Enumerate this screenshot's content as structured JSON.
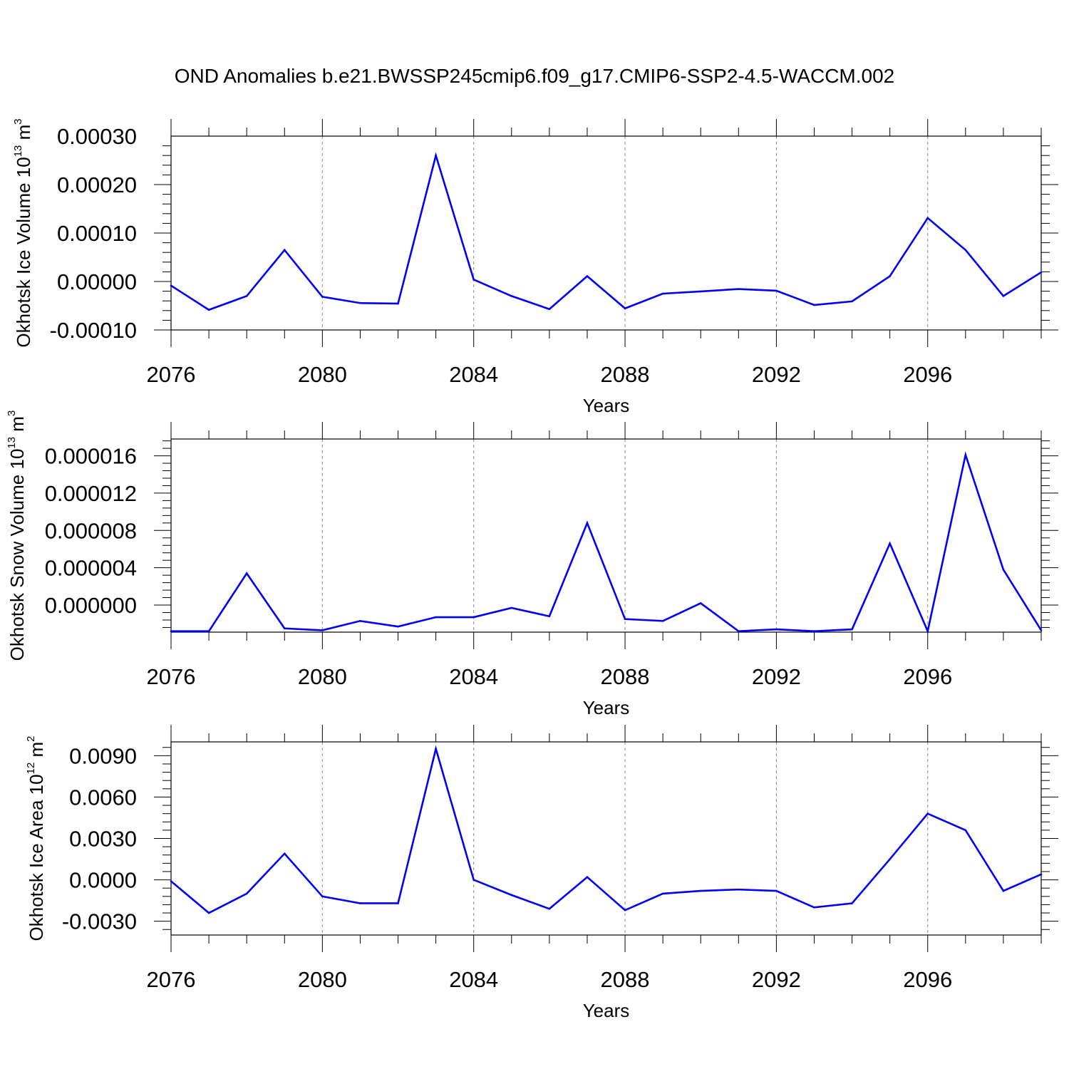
{
  "figure": {
    "title": "OND Anomalies b.e21.BWSSP245cmip6.f09_g17.CMIP6-SSP2-4.5-WACCM.002"
  },
  "colors": {
    "line": "#0000ff",
    "axis": "#000000",
    "gridline": "#888888",
    "background": "#ffffff"
  },
  "chart_data": [
    {
      "type": "line",
      "panel": "top",
      "xlabel": "Years",
      "ylabel": {
        "text": "Okhotsk Ice Volume 10",
        "exponent": "13",
        "unit": " m",
        "unit_exponent": "3"
      },
      "xlim": [
        2076,
        2099
      ],
      "ylim": [
        -0.0001,
        0.0003
      ],
      "x_ticks": [
        2076,
        2080,
        2084,
        2088,
        2092,
        2096
      ],
      "x_tick_labels": [
        "2076",
        "2080",
        "2084",
        "2088",
        "2092",
        "2096"
      ],
      "y_ticks": [
        -0.0001,
        0.0,
        0.0001,
        0.0002,
        0.0003
      ],
      "y_tick_labels": [
        "-0.00010",
        "0.00000",
        "0.00010",
        "0.00020",
        "0.00030"
      ],
      "vertical_gridlines": [
        2080,
        2084,
        2088,
        2092,
        2096
      ],
      "series": [
        {
          "x": [
            2076,
            2077,
            2078,
            2079,
            2080,
            2081,
            2082,
            2083,
            2084,
            2085,
            2086,
            2087,
            2088,
            2089,
            2090,
            2091,
            2092,
            2093,
            2094,
            2095,
            2096,
            2097,
            2098,
            2099
          ],
          "values": [
            -8.5e-06,
            -5.85e-05,
            -3e-05,
            6.5e-05,
            -3.15e-05,
            -4.45e-05,
            -4.55e-05,
            0.00026,
            4e-06,
            -3e-05,
            -5.7e-05,
            1.1e-05,
            -5.55e-05,
            -2.5e-05,
            -2.05e-05,
            -1.55e-05,
            -1.9e-05,
            -4.85e-05,
            -4.1e-05,
            1.1e-05,
            0.000131,
            6.5e-05,
            -3e-05,
            1.9e-05
          ]
        }
      ]
    },
    {
      "type": "line",
      "panel": "middle",
      "xlabel": "Years",
      "ylabel": {
        "text": "Okhotsk Snow Volume 10",
        "exponent": "13",
        "unit": " m",
        "unit_exponent": "3"
      },
      "xlim": [
        2076,
        2099
      ],
      "ylim": [
        -2.9e-06,
        1.78e-05
      ],
      "x_ticks": [
        2076,
        2080,
        2084,
        2088,
        2092,
        2096
      ],
      "x_tick_labels": [
        "2076",
        "2080",
        "2084",
        "2088",
        "2092",
        "2096"
      ],
      "y_ticks": [
        0.0,
        4e-06,
        8e-06,
        1.2e-05,
        1.6e-05
      ],
      "y_tick_labels": [
        "0.000000",
        "0.000004",
        "0.000008",
        "0.000012",
        "0.000016"
      ],
      "vertical_gridlines": [
        2080,
        2084,
        2088,
        2092,
        2096
      ],
      "series": [
        {
          "x": [
            2076,
            2077,
            2078,
            2079,
            2080,
            2081,
            2082,
            2083,
            2084,
            2085,
            2086,
            2087,
            2088,
            2089,
            2090,
            2091,
            2092,
            2093,
            2094,
            2095,
            2096,
            2097,
            2098,
            2099
          ],
          "values": [
            -2.8e-06,
            -2.8e-06,
            3.4e-06,
            -2.5e-06,
            -2.7e-06,
            -1.7e-06,
            -2.3e-06,
            -1.3e-06,
            -1.3e-06,
            -3e-07,
            -1.2e-06,
            8.8e-06,
            -1.5e-06,
            -1.7e-06,
            2e-07,
            -2.8e-06,
            -2.6e-06,
            -2.8e-06,
            -2.6e-06,
            6.6e-06,
            -2.8e-06,
            1.61e-05,
            3.8e-06,
            -2.7e-06
          ]
        }
      ]
    },
    {
      "type": "line",
      "panel": "bottom",
      "xlabel": "Years",
      "ylabel": {
        "text": "Okhotsk Ice Area 10",
        "exponent": "12",
        "unit": " m",
        "unit_exponent": "2"
      },
      "xlim": [
        2076,
        2099
      ],
      "ylim": [
        -0.004,
        0.01
      ],
      "x_ticks": [
        2076,
        2080,
        2084,
        2088,
        2092,
        2096
      ],
      "x_tick_labels": [
        "2076",
        "2080",
        "2084",
        "2088",
        "2092",
        "2096"
      ],
      "y_ticks": [
        -0.003,
        0.0,
        0.003,
        0.006,
        0.009
      ],
      "y_tick_labels": [
        "-0.0030",
        "0.0000",
        "0.0030",
        "0.0060",
        "0.0090"
      ],
      "vertical_gridlines": [
        2080,
        2084,
        2088,
        2092,
        2096
      ],
      "series": [
        {
          "x": [
            2076,
            2077,
            2078,
            2079,
            2080,
            2081,
            2082,
            2083,
            2084,
            2085,
            2086,
            2087,
            2088,
            2089,
            2090,
            2091,
            2092,
            2093,
            2094,
            2095,
            2096,
            2097,
            2098,
            2099
          ],
          "values": [
            -0.0001,
            -0.0024,
            -0.001,
            0.0019,
            -0.0012,
            -0.0017,
            -0.0017,
            0.0095,
            0.0,
            -0.0011,
            -0.0021,
            0.0002,
            -0.0022,
            -0.001,
            -0.0008,
            -0.0007,
            -0.0008,
            -0.002,
            -0.0017,
            0.0015,
            0.0048,
            0.0036,
            -0.0008,
            0.0004
          ]
        }
      ]
    }
  ]
}
